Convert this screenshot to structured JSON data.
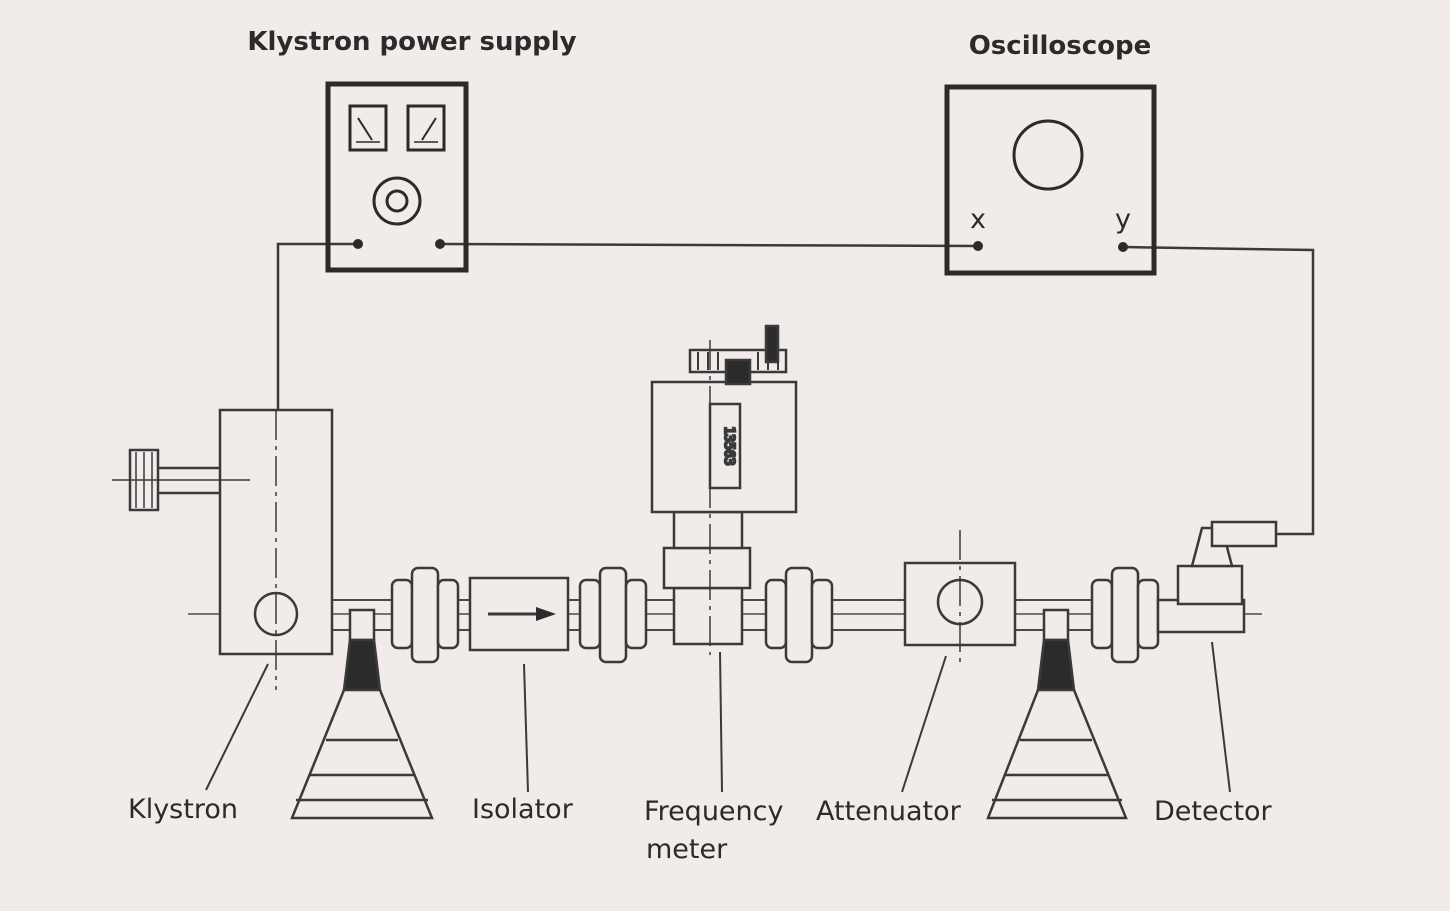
{
  "titles": {
    "power_supply": "Klystron power supply",
    "oscilloscope": "Oscilloscope"
  },
  "terminals": {
    "x": "x",
    "y": "y"
  },
  "labels": {
    "klystron": "Klystron",
    "isolator": "Isolator",
    "frequency_meter_line1": "Frequency",
    "frequency_meter_line2": "meter",
    "attenuator": "Attenuator",
    "detector": "Detector"
  },
  "meter_dial_text": "13563",
  "colors": {
    "background": "#f1ebe9",
    "ink": "#3a3a3a"
  }
}
